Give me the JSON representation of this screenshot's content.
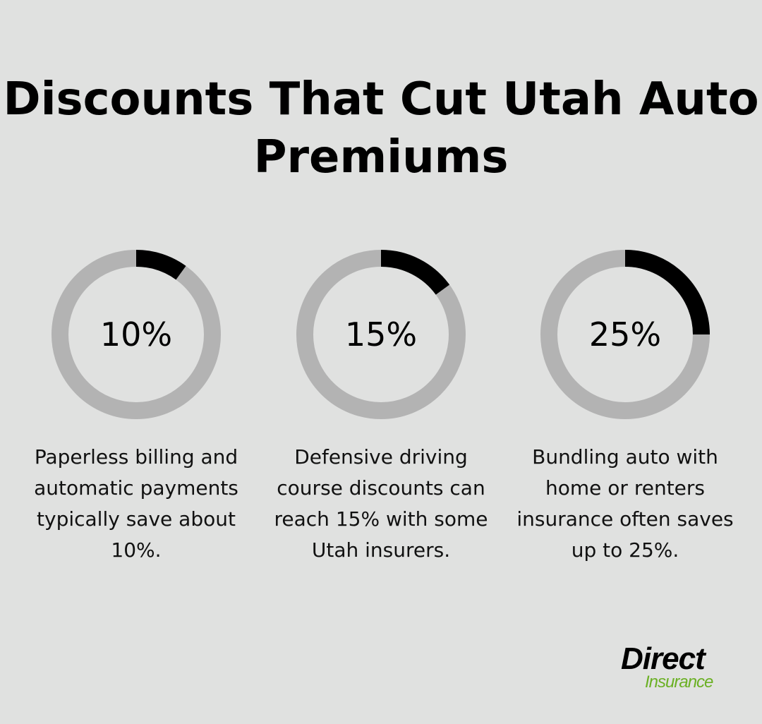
{
  "title": "Discounts That Cut Utah Auto Premiums",
  "chart_data": [
    {
      "type": "pie",
      "variant": "donut",
      "value": 10,
      "label": "10%",
      "description": "Paperless billing and automatic payments typically save about 10%.",
      "colors": {
        "filled": "#000000",
        "remaining": "#b3b3b3"
      }
    },
    {
      "type": "pie",
      "variant": "donut",
      "value": 15,
      "label": "15%",
      "description": "Defensive driving course discounts can reach 15% with some Utah insurers.",
      "colors": {
        "filled": "#000000",
        "remaining": "#b3b3b3"
      }
    },
    {
      "type": "pie",
      "variant": "donut",
      "value": 25,
      "label": "25%",
      "description": "Bundling auto with home or renters insurance often saves up to 25%.",
      "colors": {
        "filled": "#000000",
        "remaining": "#b3b3b3"
      }
    }
  ],
  "logo": {
    "line1": "Direct",
    "line2": "Insurance",
    "accent": "#6ab023"
  }
}
